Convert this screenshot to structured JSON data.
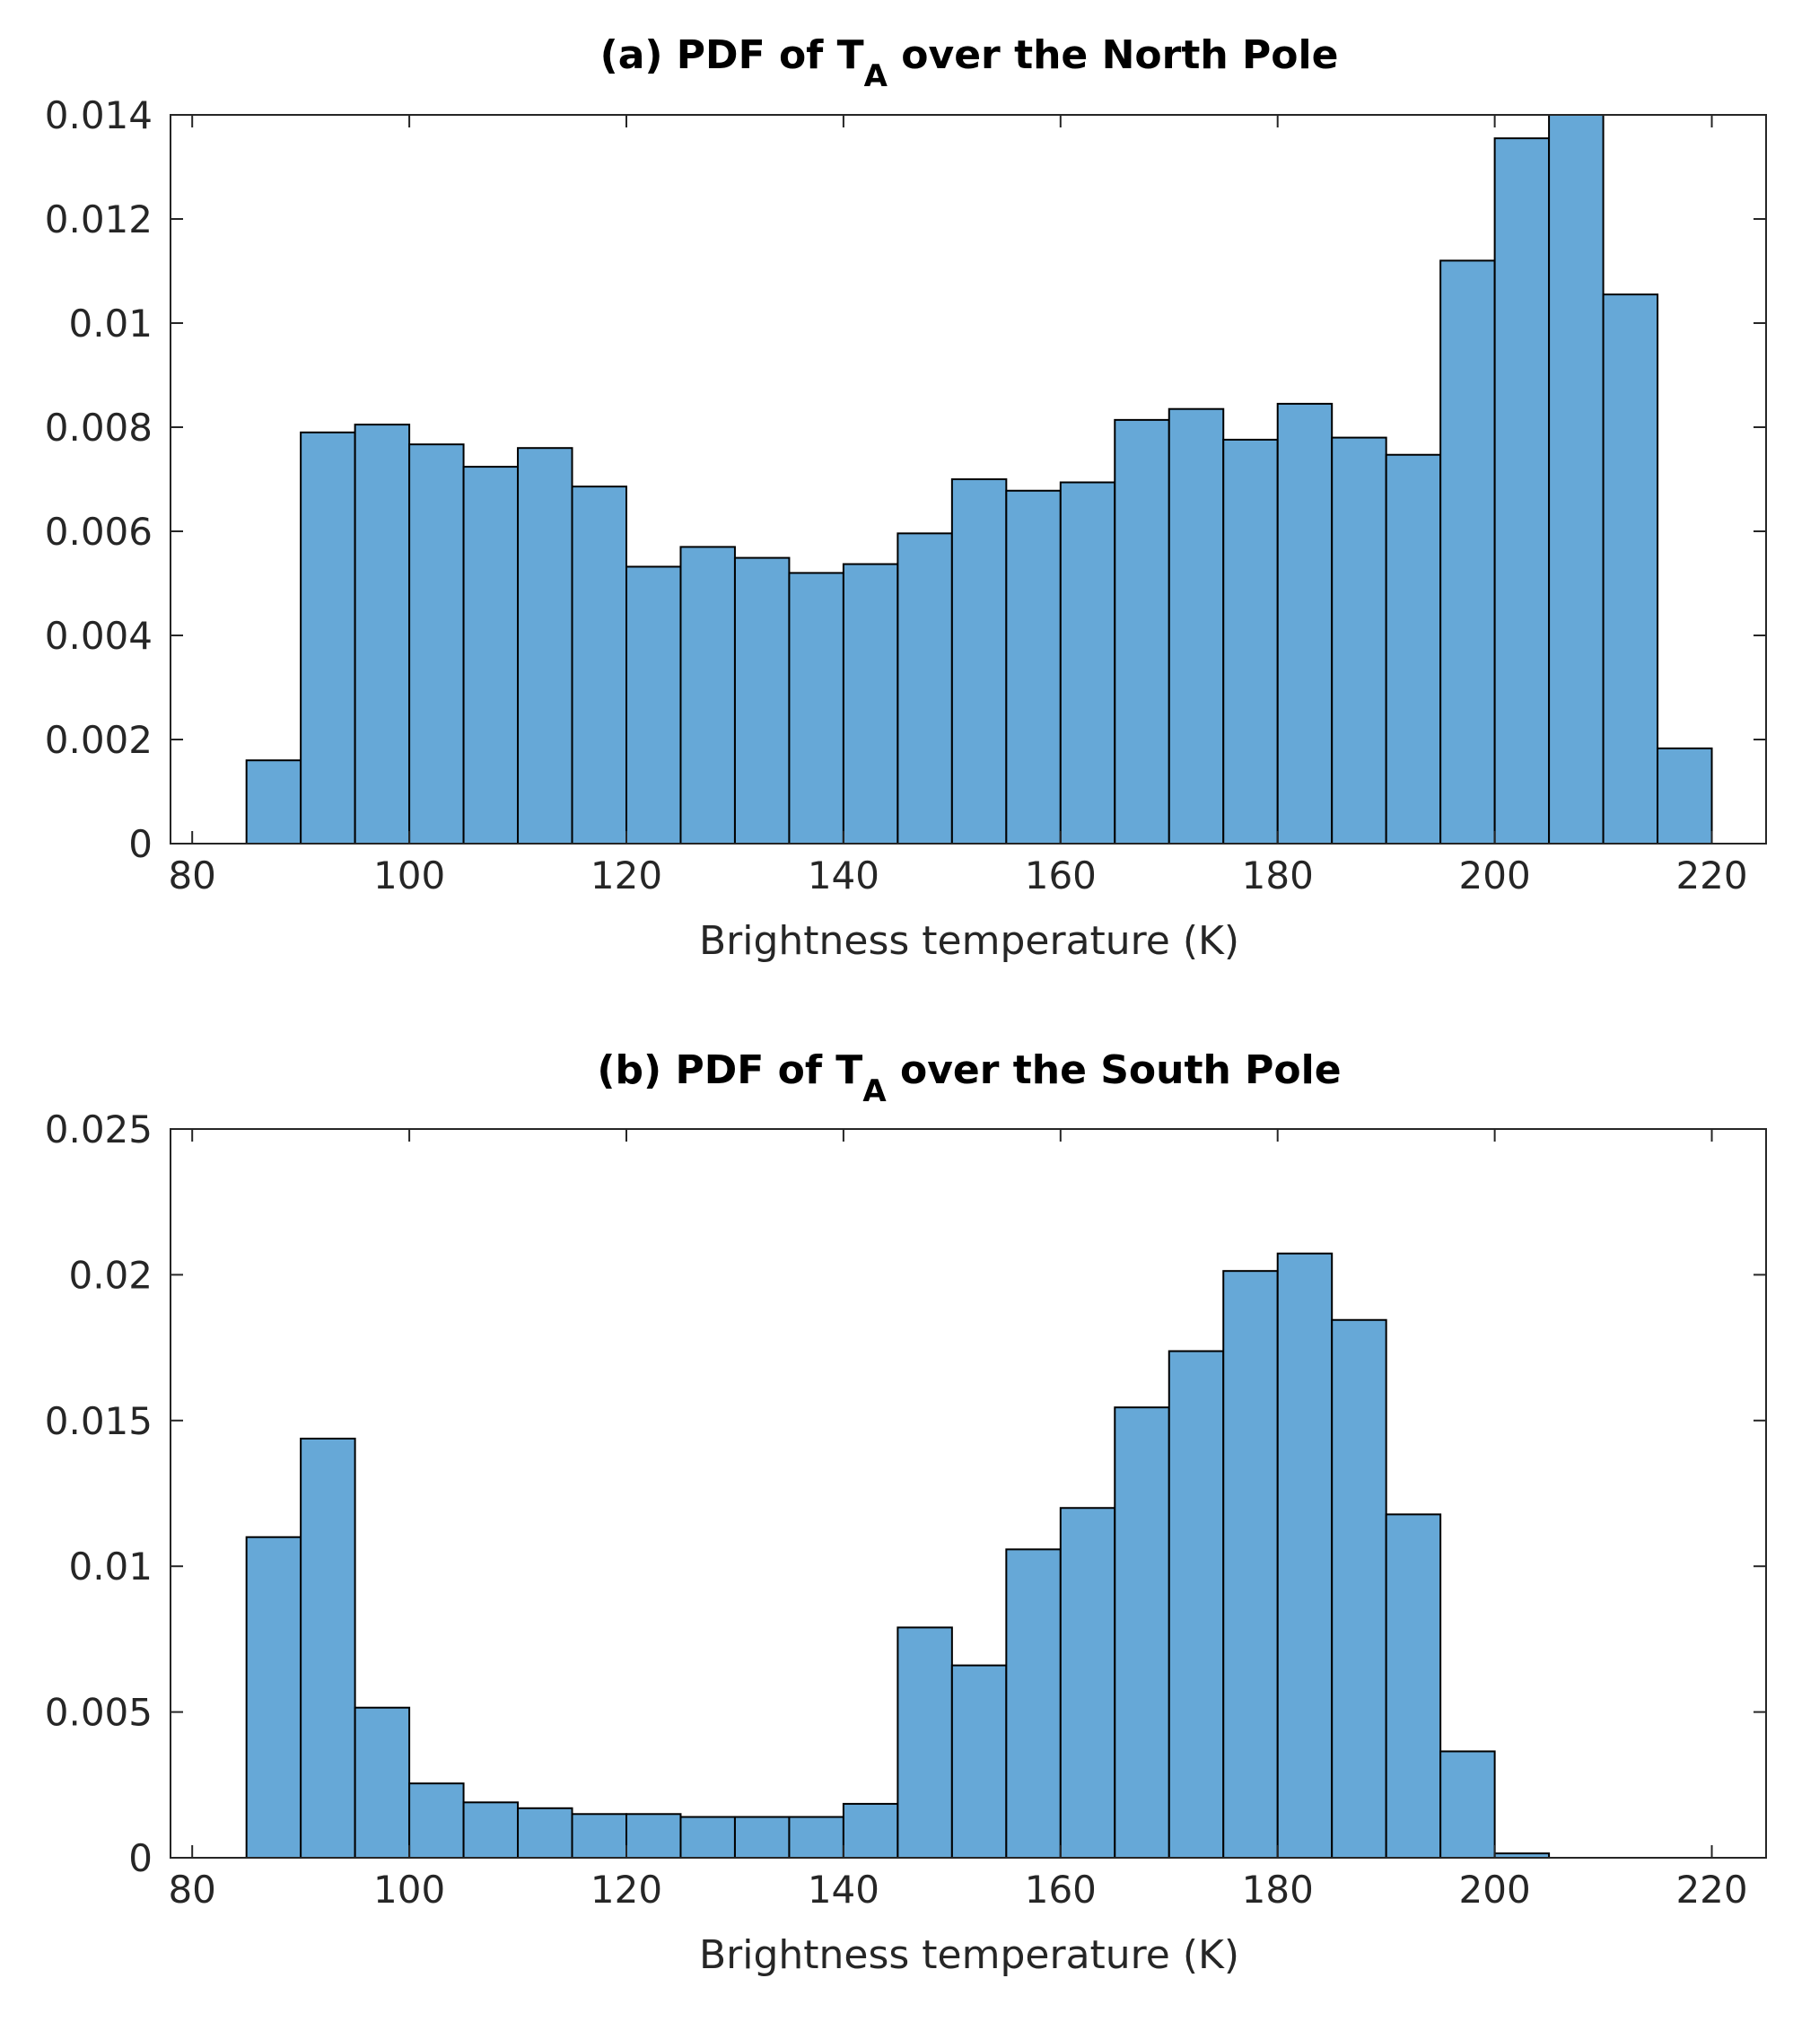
{
  "chart_data": [
    {
      "type": "bar",
      "title_prefix": "(a) PDF of T",
      "title_subscript": "A",
      "title_suffix": " over the North Pole",
      "xlabel": "Brightness temperature (K)",
      "ylabel": "",
      "xlim": [
        78,
        225
      ],
      "ylim": [
        0,
        0.014
      ],
      "xticks": [
        80,
        100,
        120,
        140,
        160,
        180,
        200,
        220
      ],
      "xtick_labels": [
        "80",
        "100",
        "120",
        "140",
        "160",
        "180",
        "200",
        "220"
      ],
      "yticks": [
        0,
        0.002,
        0.004,
        0.006,
        0.008,
        0.01,
        0.012,
        0.014
      ],
      "ytick_labels": [
        "0",
        "0.002",
        "0.004",
        "0.006",
        "0.008",
        "0.01",
        "0.012",
        "0.014"
      ],
      "bin_width": 5,
      "bin_edges_start": 85,
      "values": [
        0.0016,
        0.0079,
        0.00805,
        0.00767,
        0.00724,
        0.0076,
        0.00686,
        0.00532,
        0.0057,
        0.00549,
        0.0052,
        0.00537,
        0.00596,
        0.007,
        0.00678,
        0.00694,
        0.00814,
        0.00835,
        0.00776,
        0.00845,
        0.0078,
        0.00747,
        0.0112,
        0.01355,
        0.014,
        0.01055,
        0.00183
      ],
      "bar_color": "#66a8d7",
      "edge_color": "#000000"
    },
    {
      "type": "bar",
      "title_prefix": "(b) PDF of T",
      "title_subscript": "A",
      "title_suffix": " over the South Pole",
      "xlabel": "Brightness temperature (K)",
      "ylabel": "",
      "xlim": [
        78,
        225
      ],
      "ylim": [
        0,
        0.025
      ],
      "xticks": [
        80,
        100,
        120,
        140,
        160,
        180,
        200,
        220
      ],
      "xtick_labels": [
        "80",
        "100",
        "120",
        "140",
        "160",
        "180",
        "200",
        "220"
      ],
      "yticks": [
        0,
        0.005,
        0.01,
        0.015,
        0.02,
        0.025
      ],
      "ytick_labels": [
        "0",
        "0.005",
        "0.01",
        "0.015",
        "0.02",
        "0.025"
      ],
      "bin_width": 5,
      "bin_edges_start": 85,
      "values": [
        0.011,
        0.01438,
        0.00515,
        0.00255,
        0.0019,
        0.0017,
        0.0015,
        0.0015,
        0.0014,
        0.0014,
        0.0014,
        0.00185,
        0.0079,
        0.0066,
        0.01058,
        0.012,
        0.01545,
        0.01738,
        0.02013,
        0.02073,
        0.01845,
        0.01178,
        0.00365,
        0.00015
      ],
      "bar_color": "#66a8d7",
      "edge_color": "#000000"
    }
  ]
}
